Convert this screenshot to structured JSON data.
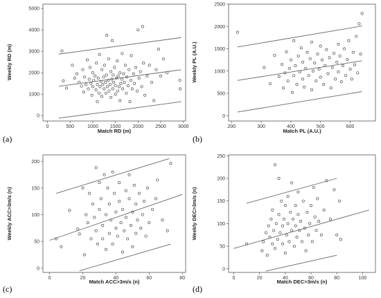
{
  "chart_data": [
    {
      "type": "scatter",
      "panel_label": "(a)",
      "xlabel": "Match RD (m)",
      "ylabel": "Weekly RD (m)",
      "xlim": [
        -100,
        3050
      ],
      "ylim": [
        -250,
        5200
      ],
      "xticks": [
        0,
        500,
        1000,
        1500,
        2000,
        2500,
        3000
      ],
      "yticks": [
        0,
        1000,
        2000,
        3000,
        4000,
        5000
      ],
      "grid": false,
      "lines": [
        {
          "x": [
            250,
            2950
          ],
          "y": [
            1370,
            2140
          ]
        },
        {
          "x": [
            250,
            2950
          ],
          "y": [
            2870,
            3640
          ]
        },
        {
          "x": [
            250,
            2950
          ],
          "y": [
            -120,
            650
          ]
        }
      ],
      "points": [
        [
          320,
          3020
        ],
        [
          350,
          1620
        ],
        [
          420,
          1280
        ],
        [
          550,
          2350
        ],
        [
          600,
          1750
        ],
        [
          650,
          1950
        ],
        [
          700,
          1550
        ],
        [
          750,
          1380
        ],
        [
          780,
          2150
        ],
        [
          800,
          1100
        ],
        [
          820,
          1800
        ],
        [
          850,
          1450
        ],
        [
          880,
          2600
        ],
        [
          900,
          1250
        ],
        [
          920,
          1700
        ],
        [
          940,
          2250
        ],
        [
          960,
          1500
        ],
        [
          980,
          950
        ],
        [
          1000,
          2000
        ],
        [
          1000,
          1350
        ],
        [
          1020,
          1650
        ],
        [
          1050,
          1850
        ],
        [
          1070,
          1200
        ],
        [
          1080,
          2450
        ],
        [
          1100,
          1450
        ],
        [
          1100,
          650
        ],
        [
          1120,
          1750
        ],
        [
          1140,
          1050
        ],
        [
          1150,
          2850
        ],
        [
          1160,
          1350
        ],
        [
          1180,
          1600
        ],
        [
          1200,
          2150
        ],
        [
          1200,
          900
        ],
        [
          1220,
          1450
        ],
        [
          1240,
          1800
        ],
        [
          1250,
          1250
        ],
        [
          1260,
          2350
        ],
        [
          1280,
          1550
        ],
        [
          1290,
          1050
        ],
        [
          1300,
          1900
        ],
        [
          1310,
          3750
        ],
        [
          1320,
          1350
        ],
        [
          1340,
          1650
        ],
        [
          1350,
          2650
        ],
        [
          1360,
          1150
        ],
        [
          1380,
          1450
        ],
        [
          1400,
          2050
        ],
        [
          1400,
          850
        ],
        [
          1420,
          1700
        ],
        [
          1430,
          3500
        ],
        [
          1440,
          1250
        ],
        [
          1450,
          1900
        ],
        [
          1460,
          1550
        ],
        [
          1480,
          2250
        ],
        [
          1500,
          1000
        ],
        [
          1500,
          1400
        ],
        [
          1520,
          1750
        ],
        [
          1540,
          2550
        ],
        [
          1550,
          1150
        ],
        [
          1560,
          1850
        ],
        [
          1580,
          1350
        ],
        [
          1600,
          2000
        ],
        [
          1600,
          700
        ],
        [
          1620,
          1500
        ],
        [
          1640,
          1700
        ],
        [
          1650,
          2900
        ],
        [
          1660,
          1250
        ],
        [
          1680,
          1950
        ],
        [
          1700,
          1550
        ],
        [
          1720,
          2350
        ],
        [
          1740,
          1050
        ],
        [
          1750,
          1800
        ],
        [
          1780,
          1400
        ],
        [
          1800,
          2150
        ],
        [
          1820,
          650
        ],
        [
          1840,
          1650
        ],
        [
          1850,
          2800
        ],
        [
          1870,
          1250
        ],
        [
          1900,
          1950
        ],
        [
          1920,
          1500
        ],
        [
          1950,
          2250
        ],
        [
          1980,
          1150
        ],
        [
          2000,
          4000
        ],
        [
          2020,
          1750
        ],
        [
          2050,
          2050
        ],
        [
          2080,
          1350
        ],
        [
          2100,
          4150
        ],
        [
          2120,
          2450
        ],
        [
          2150,
          950
        ],
        [
          2200,
          1850
        ],
        [
          2250,
          2350
        ],
        [
          2300,
          1550
        ],
        [
          2350,
          700
        ],
        [
          2400,
          2150
        ],
        [
          2450,
          3100
        ],
        [
          2500,
          1850
        ],
        [
          2560,
          2650
        ],
        [
          2640,
          2000
        ],
        [
          2920,
          1650
        ],
        [
          2930,
          1250
        ]
      ]
    },
    {
      "type": "scatter",
      "panel_label": "(b)",
      "xlabel": "Match PL (A.U.)",
      "ylabel": "Weekly PL (A.U.)",
      "xlim": [
        190,
        685
      ],
      "ylim": [
        -120,
        2500
      ],
      "xticks": [
        200,
        300,
        400,
        500,
        600
      ],
      "yticks": [
        0,
        500,
        1000,
        1500,
        2000,
        2500
      ],
      "grid": false,
      "lines": [
        {
          "x": [
            220,
            640
          ],
          "y": [
            1540,
            2010
          ]
        },
        {
          "x": [
            220,
            640
          ],
          "y": [
            790,
            1230
          ]
        },
        {
          "x": [
            220,
            640
          ],
          "y": [
            80,
            540
          ]
        }
      ],
      "points": [
        [
          220,
          1870
        ],
        [
          310,
          1080
        ],
        [
          330,
          720
        ],
        [
          345,
          1350
        ],
        [
          360,
          880
        ],
        [
          370,
          1150
        ],
        [
          375,
          620
        ],
        [
          380,
          960
        ],
        [
          385,
          1430
        ],
        [
          390,
          780
        ],
        [
          395,
          1060
        ],
        [
          400,
          1250
        ],
        [
          405,
          520
        ],
        [
          410,
          900
        ],
        [
          410,
          1680
        ],
        [
          415,
          1120
        ],
        [
          420,
          700
        ],
        [
          425,
          1340
        ],
        [
          430,
          980
        ],
        [
          435,
          1520
        ],
        [
          440,
          820
        ],
        [
          440,
          1200
        ],
        [
          445,
          640
        ],
        [
          450,
          1060
        ],
        [
          455,
          1420
        ],
        [
          460,
          900
        ],
        [
          465,
          1280
        ],
        [
          470,
          1650
        ],
        [
          470,
          580
        ],
        [
          475,
          1000
        ],
        [
          480,
          1180
        ],
        [
          485,
          780
        ],
        [
          490,
          1380
        ],
        [
          495,
          1040
        ],
        [
          500,
          1560
        ],
        [
          500,
          860
        ],
        [
          505,
          1250
        ],
        [
          510,
          700
        ],
        [
          515,
          1120
        ],
        [
          520,
          1480
        ],
        [
          525,
          940
        ],
        [
          530,
          1300
        ],
        [
          535,
          620
        ],
        [
          540,
          1080
        ],
        [
          545,
          1400
        ],
        [
          550,
          820
        ],
        [
          555,
          1200
        ],
        [
          560,
          1600
        ],
        [
          560,
          980
        ],
        [
          565,
          1340
        ],
        [
          570,
          760
        ],
        [
          575,
          1120
        ],
        [
          580,
          1500
        ],
        [
          585,
          900
        ],
        [
          590,
          1260
        ],
        [
          595,
          1680
        ],
        [
          600,
          1040
        ],
        [
          605,
          820
        ],
        [
          610,
          1420
        ],
        [
          615,
          1140
        ],
        [
          620,
          1780
        ],
        [
          625,
          960
        ],
        [
          630,
          2060
        ],
        [
          635,
          1380
        ],
        [
          640,
          2290
        ]
      ]
    },
    {
      "type": "scatter",
      "panel_label": "(c)",
      "xlabel": "Match ACC>3m/s (n)",
      "ylabel": "Weekly ACC>3m/s (n)",
      "xlim": [
        -4,
        82
      ],
      "ylim": [
        -8,
        212
      ],
      "xticks": [
        0,
        20,
        40,
        60,
        80
      ],
      "yticks": [
        0,
        50,
        100,
        150,
        200
      ],
      "grid": false,
      "lines": [
        {
          "x": [
            0,
            80
          ],
          "y": [
            52,
            138
          ]
        },
        {
          "x": [
            4,
            72
          ],
          "y": [
            140,
            205
          ]
        },
        {
          "x": [
            18,
            73
          ],
          "y": [
            -5,
            45
          ]
        }
      ],
      "points": [
        [
          4,
          55
        ],
        [
          7,
          40
        ],
        [
          12,
          108
        ],
        [
          17,
          73
        ],
        [
          18,
          64
        ],
        [
          20,
          150
        ],
        [
          21,
          25
        ],
        [
          22,
          100
        ],
        [
          23,
          85
        ],
        [
          24,
          140
        ],
        [
          25,
          55
        ],
        [
          26,
          120
        ],
        [
          27,
          95
        ],
        [
          28,
          70
        ],
        [
          28,
          188
        ],
        [
          29,
          45
        ],
        [
          30,
          110
        ],
        [
          30,
          160
        ],
        [
          31,
          130
        ],
        [
          32,
          80
        ],
        [
          32,
          55
        ],
        [
          33,
          175
        ],
        [
          34,
          100
        ],
        [
          34,
          35
        ],
        [
          35,
          150
        ],
        [
          36,
          65
        ],
        [
          36,
          120
        ],
        [
          37,
          90
        ],
        [
          38,
          180
        ],
        [
          38,
          45
        ],
        [
          39,
          140
        ],
        [
          40,
          75
        ],
        [
          40,
          105
        ],
        [
          41,
          60
        ],
        [
          42,
          160
        ],
        [
          42,
          125
        ],
        [
          43,
          85
        ],
        [
          44,
          30
        ],
        [
          44,
          110
        ],
        [
          45,
          70
        ],
        [
          46,
          145
        ],
        [
          46,
          95
        ],
        [
          47,
          55
        ],
        [
          48,
          130
        ],
        [
          48,
          175
        ],
        [
          49,
          80
        ],
        [
          50,
          105
        ],
        [
          50,
          40
        ],
        [
          51,
          155
        ],
        [
          52,
          65
        ],
        [
          52,
          120
        ],
        [
          53,
          90
        ],
        [
          54,
          140
        ],
        [
          55,
          75
        ],
        [
          56,
          100
        ],
        [
          57,
          125
        ],
        [
          58,
          60
        ],
        [
          59,
          150
        ],
        [
          60,
          85
        ],
        [
          62,
          110
        ],
        [
          64,
          130
        ],
        [
          65,
          165
        ],
        [
          68,
          90
        ],
        [
          71,
          70
        ],
        [
          73,
          196
        ]
      ]
    },
    {
      "type": "scatter",
      "panel_label": "(d)",
      "xlabel": "Match DEC>3m/s (n)",
      "ylabel": "Weekly DEC>3m/s (n)",
      "xlim": [
        -4,
        110
      ],
      "ylim": [
        -8,
        252
      ],
      "xticks": [
        0,
        20,
        40,
        60,
        80,
        100
      ],
      "yticks": [
        0,
        50,
        100,
        150,
        200,
        250
      ],
      "grid": false,
      "lines": [
        {
          "x": [
            0,
            105
          ],
          "y": [
            45,
            130
          ]
        },
        {
          "x": [
            10,
            80
          ],
          "y": [
            145,
            200
          ]
        },
        {
          "x": [
            25,
            80
          ],
          "y": [
            -5,
            30
          ]
        }
      ],
      "points": [
        [
          10,
          55
        ],
        [
          22,
          40
        ],
        [
          23,
          60
        ],
        [
          25,
          80
        ],
        [
          26,
          30
        ],
        [
          27,
          95
        ],
        [
          28,
          70
        ],
        [
          29,
          110
        ],
        [
          30,
          55
        ],
        [
          30,
          130
        ],
        [
          31,
          85
        ],
        [
          32,
          45
        ],
        [
          32,
          230
        ],
        [
          33,
          100
        ],
        [
          34,
          65
        ],
        [
          35,
          200
        ],
        [
          35,
          120
        ],
        [
          36,
          80
        ],
        [
          37,
          150
        ],
        [
          38,
          95
        ],
        [
          38,
          55
        ],
        [
          39,
          110
        ],
        [
          40,
          35
        ],
        [
          40,
          140
        ],
        [
          41,
          75
        ],
        [
          42,
          160
        ],
        [
          42,
          100
        ],
        [
          43,
          60
        ],
        [
          44,
          125
        ],
        [
          45,
          85
        ],
        [
          45,
          190
        ],
        [
          46,
          110
        ],
        [
          47,
          50
        ],
        [
          48,
          140
        ],
        [
          48,
          95
        ],
        [
          49,
          70
        ],
        [
          50,
          120
        ],
        [
          50,
          170
        ],
        [
          51,
          85
        ],
        [
          52,
          105
        ],
        [
          53,
          60
        ],
        [
          54,
          150
        ],
        [
          55,
          90
        ],
        [
          56,
          40
        ],
        [
          57,
          125
        ],
        [
          58,
          75
        ],
        [
          59,
          100
        ],
        [
          60,
          140
        ],
        [
          61,
          60
        ],
        [
          62,
          180
        ],
        [
          63,
          115
        ],
        [
          64,
          85
        ],
        [
          65,
          155
        ],
        [
          66,
          105
        ],
        [
          68,
          75
        ],
        [
          70,
          130
        ],
        [
          72,
          195
        ],
        [
          75,
          110
        ],
        [
          78,
          175
        ],
        [
          80,
          75
        ],
        [
          82,
          150
        ],
        [
          83,
          65
        ]
      ]
    }
  ]
}
